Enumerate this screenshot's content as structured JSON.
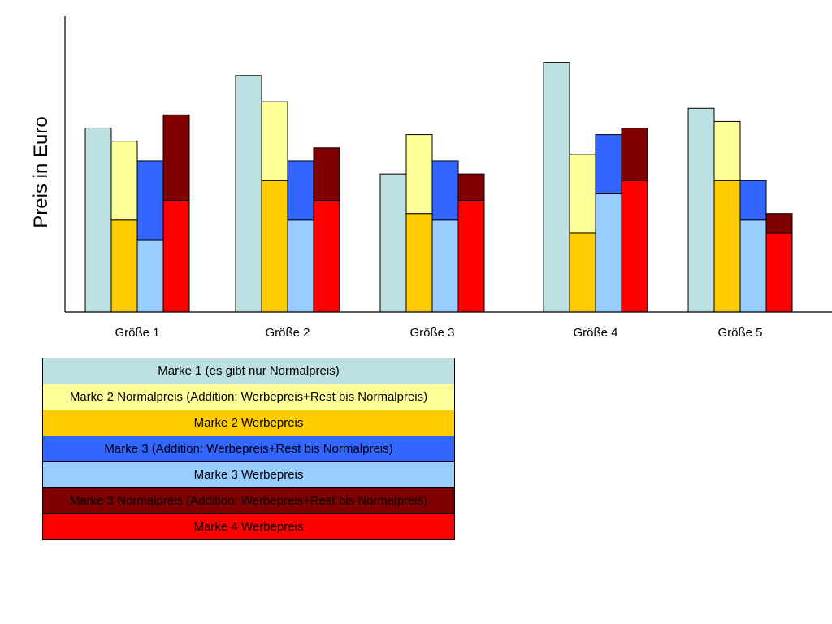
{
  "chart_data": {
    "type": "bar",
    "ylabel": "Preis in Euro",
    "ylim": [
      0,
      22.5
    ],
    "grid": false,
    "legend_placement": "bottom-left",
    "categories": [
      "Größe 1",
      "Größe 2",
      "Größe 3",
      "Größe 4",
      "Größe 5"
    ],
    "groups": [
      {
        "marke1": 14,
        "marke2_werbe": 7,
        "marke2_normal": 13,
        "marke3_werbe": 5.5,
        "marke3_mid": 11.5,
        "marke4_werbe": 8.5,
        "marke3_normal": 15
      },
      {
        "marke1": 18,
        "marke2_werbe": 10,
        "marke2_normal": 16,
        "marke3_werbe": 7,
        "marke3_mid": 11.5,
        "marke4_werbe": 8.5,
        "marke3_normal": 12.5
      },
      {
        "marke1": 10.5,
        "marke2_werbe": 7.5,
        "marke2_normal": 13.5,
        "marke3_werbe": 7,
        "marke3_mid": 11.5,
        "marke4_werbe": 8.5,
        "marke3_normal": 10.5
      },
      {
        "marke1": 19,
        "marke2_werbe": 6,
        "marke2_normal": 12,
        "marke3_werbe": 9,
        "marke3_mid": 13.5,
        "marke4_werbe": 10,
        "marke3_normal": 14
      },
      {
        "marke1": 15.5,
        "marke2_werbe": 10,
        "marke2_normal": 14.5,
        "marke3_werbe": 7,
        "marke3_mid": 10,
        "marke4_werbe": 6,
        "marke3_normal": 7.5
      }
    ],
    "colors": {
      "marke1": "#BDE0E3",
      "marke2_normal": "#FFFF99",
      "marke2_werbe": "#FFCC00",
      "marke3_mid": "#3366FF",
      "marke3_werbe": "#99CCFF",
      "marke3_normal": "#800000",
      "marke4_werbe": "#FF0000"
    }
  },
  "legend": [
    {
      "label": "Marke 1 (es gibt nur Normalpreis)",
      "color": "#BDE0E3",
      "text_color": "#000000"
    },
    {
      "label": "Marke 2 Normalpreis (Addition: Werbepreis+Rest bis Normalpreis)",
      "color": "#FFFF99",
      "text_color": "#000000"
    },
    {
      "label": "Marke 2 Werbepreis",
      "color": "#FFCC00",
      "text_color": "#000000"
    },
    {
      "label": "Marke 3 (Addition: Werbepreis+Rest bis Normalpreis)",
      "color": "#3366FF",
      "text_color": "#000000"
    },
    {
      "label": "Marke 3 Werbepreis",
      "color": "#99CCFF",
      "text_color": "#000000"
    },
    {
      "label": "Marke 3 Normalpreis (Addition: Werbepreis+Rest bis Normalpreis)",
      "color": "#800000",
      "text_color": "#000000"
    },
    {
      "label": "Marke 4 Werbepreis",
      "color": "#FF0000",
      "text_color": "#000000"
    }
  ]
}
